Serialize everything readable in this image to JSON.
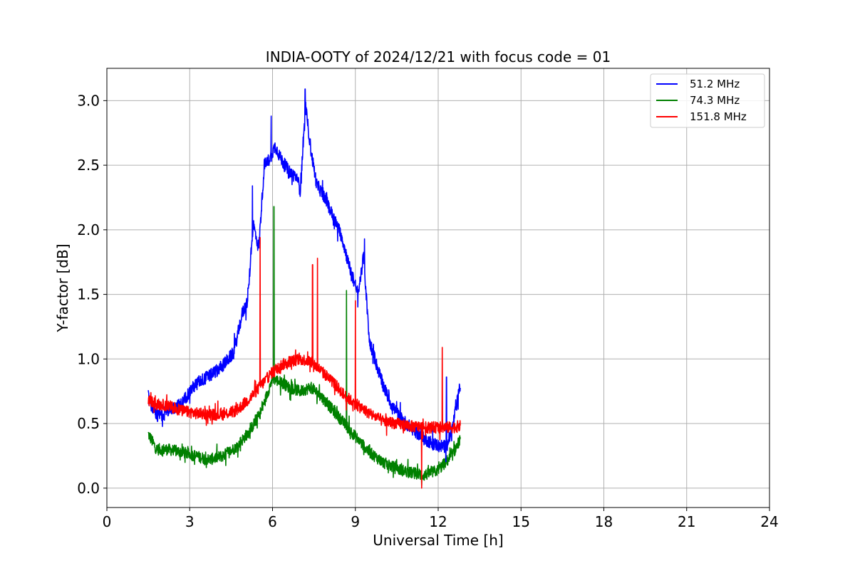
{
  "chart_data": {
    "type": "line",
    "title": "INDIA-OOTY of 2024/12/21 with focus code = 01",
    "xlabel": "Universal Time [h]",
    "ylabel": "Y-factor [dB]",
    "xlim": [
      0,
      24
    ],
    "ylim": [
      -0.15,
      3.25
    ],
    "xticks": [
      0,
      3,
      6,
      9,
      12,
      15,
      18,
      21,
      24
    ],
    "yticks": [
      0.0,
      0.5,
      1.0,
      1.5,
      2.0,
      2.5,
      3.0
    ],
    "xtick_labels": [
      "0",
      "3",
      "6",
      "9",
      "12",
      "15",
      "18",
      "21",
      "24"
    ],
    "ytick_labels": [
      "0.0",
      "0.5",
      "1.0",
      "1.5",
      "2.0",
      "2.5",
      "3.0"
    ],
    "grid": true,
    "legend_position": "top-right",
    "series": [
      {
        "name": "51.2 MHz",
        "color": "#0000ff",
        "noise": 0.05,
        "x": [
          1.5,
          1.8,
          2.2,
          2.7,
          3.0,
          3.3,
          3.8,
          4.2,
          4.6,
          4.9,
          5.1,
          5.3,
          5.5,
          5.7,
          5.9,
          6.1,
          6.3,
          6.6,
          6.9,
          7.0,
          7.2,
          7.4,
          7.6,
          7.9,
          8.2,
          8.5,
          8.8,
          9.1,
          9.3,
          9.5,
          9.7,
          10.0,
          10.3,
          10.6,
          11.0,
          11.5,
          12.0,
          12.3,
          12.5,
          12.8
        ],
        "y": [
          0.7,
          0.55,
          0.6,
          0.65,
          0.75,
          0.82,
          0.88,
          0.95,
          1.05,
          1.35,
          1.45,
          2.05,
          1.85,
          2.5,
          2.55,
          2.65,
          2.55,
          2.45,
          2.4,
          2.3,
          2.95,
          2.6,
          2.35,
          2.25,
          2.1,
          1.95,
          1.7,
          1.5,
          1.8,
          1.15,
          1.0,
          0.8,
          0.65,
          0.55,
          0.47,
          0.38,
          0.33,
          0.32,
          0.45,
          0.8
        ]
      },
      {
        "name": "74.3 MHz",
        "color": "#008000",
        "noise": 0.045,
        "x": [
          1.5,
          1.8,
          2.2,
          2.7,
          3.2,
          3.7,
          4.2,
          4.7,
          5.2,
          5.6,
          6.0,
          6.3,
          6.6,
          7.0,
          7.4,
          7.8,
          8.2,
          8.6,
          9.0,
          9.5,
          10.0,
          10.5,
          11.0,
          11.5,
          12.0,
          12.5,
          12.8
        ],
        "y": [
          0.42,
          0.3,
          0.3,
          0.28,
          0.25,
          0.22,
          0.25,
          0.32,
          0.45,
          0.6,
          0.85,
          0.82,
          0.78,
          0.75,
          0.78,
          0.7,
          0.6,
          0.5,
          0.4,
          0.28,
          0.2,
          0.15,
          0.12,
          0.1,
          0.14,
          0.25,
          0.38
        ]
      },
      {
        "name": "151.8 MHz",
        "color": "#ff0000",
        "noise": 0.045,
        "x": [
          1.5,
          1.8,
          2.2,
          2.7,
          3.2,
          3.7,
          4.2,
          4.7,
          5.2,
          5.6,
          6.0,
          6.3,
          6.6,
          7.0,
          7.4,
          7.8,
          8.2,
          8.6,
          9.0,
          9.5,
          10.0,
          10.5,
          11.0,
          11.5,
          12.0,
          12.5,
          12.8
        ],
        "y": [
          0.68,
          0.65,
          0.64,
          0.6,
          0.58,
          0.57,
          0.57,
          0.6,
          0.7,
          0.8,
          0.9,
          0.95,
          0.98,
          1.0,
          0.98,
          0.9,
          0.82,
          0.72,
          0.65,
          0.58,
          0.52,
          0.5,
          0.48,
          0.47,
          0.47,
          0.47,
          0.48
        ]
      }
    ],
    "spikes": [
      {
        "series": 0,
        "x": 5.27,
        "y": 2.34
      },
      {
        "series": 0,
        "x": 5.95,
        "y": 2.88
      },
      {
        "series": 0,
        "x": 7.18,
        "y": 3.09
      },
      {
        "series": 0,
        "x": 9.33,
        "y": 1.93
      },
      {
        "series": 0,
        "x": 12.3,
        "y": 0.86
      },
      {
        "series": 1,
        "x": 6.05,
        "y": 2.18
      },
      {
        "series": 1,
        "x": 8.68,
        "y": 1.53
      },
      {
        "series": 1,
        "x": 11.4,
        "y": 0.02
      },
      {
        "series": 2,
        "x": 5.55,
        "y": 1.94
      },
      {
        "series": 2,
        "x": 7.45,
        "y": 1.73
      },
      {
        "series": 2,
        "x": 7.63,
        "y": 1.78
      },
      {
        "series": 2,
        "x": 9.0,
        "y": 1.45
      },
      {
        "series": 2,
        "x": 12.15,
        "y": 1.09
      },
      {
        "series": 2,
        "x": 11.4,
        "y": 0.0
      }
    ]
  }
}
